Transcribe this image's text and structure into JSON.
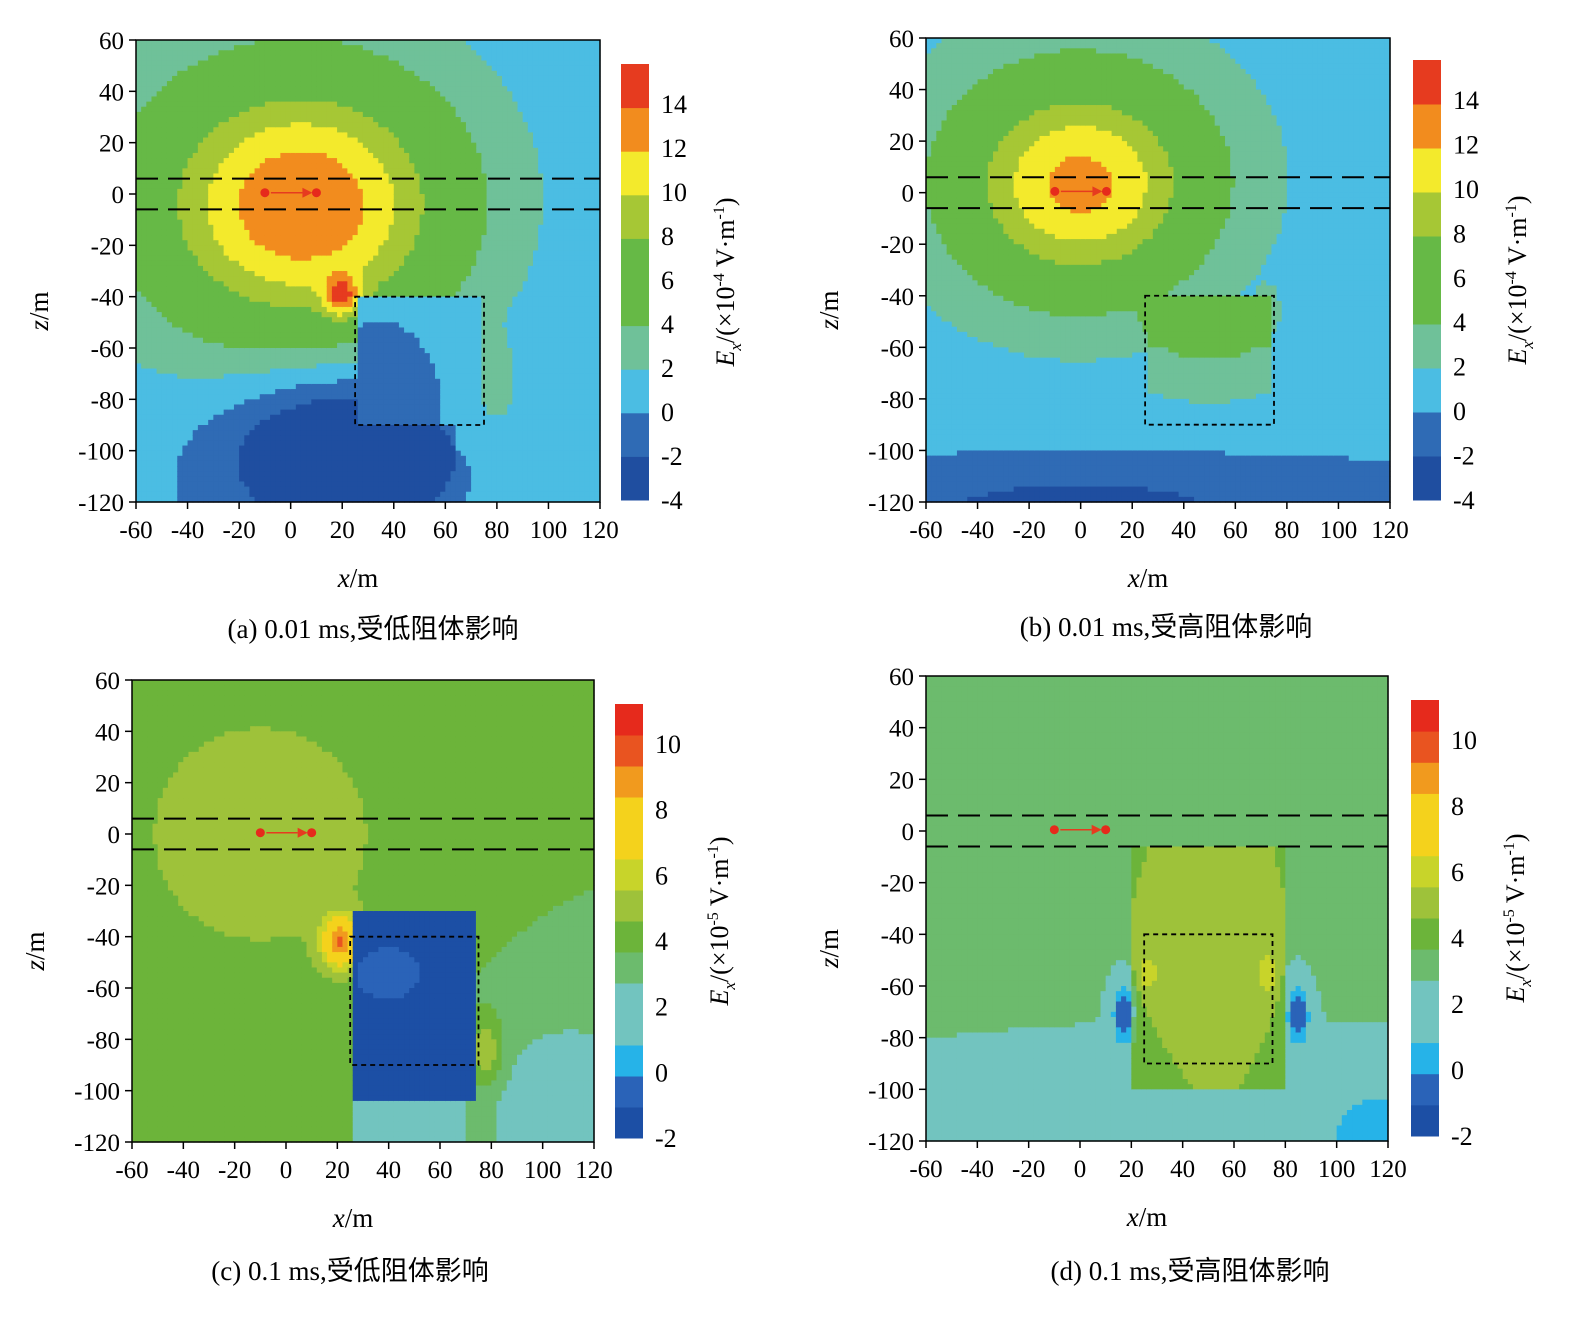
{
  "figure": {
    "colors": {
      "seq7": [
        "#1f4ea0",
        "#2f6bb5",
        "#4bbde3",
        "#6fc199",
        "#66b946",
        "#a6c735",
        "#f3ea2c",
        "#f28c1e",
        "#e63b1f"
      ],
      "seq8": [
        "#1c4fa5",
        "#2a63b8",
        "#26b3e8",
        "#72c4bf",
        "#6cbb6d",
        "#6cb43a",
        "#9ec23a",
        "#c8d42a",
        "#f4d21c",
        "#f19a1e",
        "#e95420",
        "#e62a1c"
      ]
    }
  },
  "chart_data": [
    {
      "type": "heatmap",
      "panel": "a",
      "caption": "(a) 0.01 ms,受低阻体影响",
      "xlabel_var": "x",
      "xlabel_unit": "/m",
      "ylabel_var": "z",
      "ylabel_unit": "/m",
      "xlim": [
        -60,
        120
      ],
      "ylim": [
        -120,
        60
      ],
      "xticks": [
        "-60",
        "-40",
        "-20",
        "0",
        "20",
        "40",
        "60",
        "80",
        "100",
        "120"
      ],
      "yticks": [
        "60",
        "40",
        "20",
        "0",
        "-20",
        "-40",
        "-60",
        "-80",
        "-100",
        "-120"
      ],
      "colorbar": {
        "title_var": "E",
        "title_sub": "x",
        "title_unit": "/(×10",
        "title_exp": "-4",
        "title_tail": " V·m",
        "title_exp2": "-1",
        "title_close": ")",
        "levels": [
          -4,
          -2,
          0,
          2,
          4,
          6,
          8,
          10,
          12,
          14,
          16
        ],
        "labels": [
          "14",
          "12",
          "10",
          "8",
          "6",
          "4",
          "2",
          "0",
          "-2",
          "-4"
        ]
      },
      "layer_z": [
        6,
        -6
      ],
      "anomaly_box": {
        "x": [
          25,
          75
        ],
        "z": [
          -40,
          -90
        ]
      },
      "source_points": [
        [
          -10,
          0.5
        ],
        [
          10,
          0.5
        ]
      ],
      "field_model": "low",
      "time_ms": 0.01
    },
    {
      "type": "heatmap",
      "panel": "b",
      "caption": "(b) 0.01 ms,受高阻体影响",
      "xlabel_var": "x",
      "xlabel_unit": "/m",
      "ylabel_var": "z",
      "ylabel_unit": "/m",
      "xlim": [
        -60,
        120
      ],
      "ylim": [
        -120,
        60
      ],
      "xticks": [
        "-60",
        "-40",
        "-20",
        "0",
        "20",
        "40",
        "60",
        "80",
        "100",
        "120"
      ],
      "yticks": [
        "60",
        "40",
        "20",
        "0",
        "-20",
        "-40",
        "-60",
        "-80",
        "-100",
        "-120"
      ],
      "colorbar": {
        "title_var": "E",
        "title_sub": "x",
        "title_unit": "/(×10",
        "title_exp": "-4",
        "title_tail": " V·m",
        "title_exp2": "-1",
        "title_close": ")",
        "levels": [
          -4,
          -2,
          0,
          2,
          4,
          6,
          8,
          10,
          12,
          14,
          16
        ],
        "labels": [
          "14",
          "12",
          "10",
          "8",
          "6",
          "4",
          "2",
          "0",
          "-2",
          "-4"
        ]
      },
      "layer_z": [
        6,
        -6
      ],
      "anomaly_box": {
        "x": [
          25,
          75
        ],
        "z": [
          -40,
          -90
        ]
      },
      "source_points": [
        [
          -10,
          0.5
        ],
        [
          10,
          0.5
        ]
      ],
      "field_model": "high",
      "time_ms": 0.01
    },
    {
      "type": "heatmap",
      "panel": "c",
      "caption": "(c) 0.1 ms,受低阻体影响",
      "xlabel_var": "x",
      "xlabel_unit": "/m",
      "ylabel_var": "z",
      "ylabel_unit": "/m",
      "xlim": [
        -60,
        120
      ],
      "ylim": [
        -120,
        60
      ],
      "xticks": [
        "-60",
        "-40",
        "-20",
        "0",
        "20",
        "40",
        "60",
        "80",
        "100",
        "120"
      ],
      "yticks": [
        "60",
        "40",
        "20",
        "0",
        "-20",
        "-40",
        "-60",
        "-80",
        "-100",
        "-120"
      ],
      "colorbar": {
        "title_var": "E",
        "title_sub": "x",
        "title_unit": "/(×10",
        "title_exp": "-5",
        "title_tail": " V·m",
        "title_exp2": "-1",
        "title_close": ")",
        "levels": [
          -2,
          -1,
          0,
          1,
          2,
          3,
          4,
          5,
          6,
          7,
          8,
          9,
          10,
          11,
          12
        ],
        "labels": [
          "10",
          "8",
          "6",
          "4",
          "2",
          "0",
          "-2"
        ]
      },
      "layer_z": [
        6,
        -6
      ],
      "anomaly_box": {
        "x": [
          25,
          75
        ],
        "z": [
          -40,
          -90
        ]
      },
      "source_points": [
        [
          -10,
          0.5
        ],
        [
          10,
          0.5
        ]
      ],
      "field_model": "low",
      "time_ms": 0.1
    },
    {
      "type": "heatmap",
      "panel": "d",
      "caption": "(d) 0.1 ms,受高阻体影响",
      "xlabel_var": "x",
      "xlabel_unit": "/m",
      "ylabel_var": "z",
      "ylabel_unit": "/m",
      "xlim": [
        -60,
        120
      ],
      "ylim": [
        -120,
        60
      ],
      "xticks": [
        "-60",
        "-40",
        "-20",
        "0",
        "20",
        "40",
        "60",
        "80",
        "100",
        "120"
      ],
      "yticks": [
        "60",
        "40",
        "20",
        "0",
        "-20",
        "-40",
        "-60",
        "-80",
        "-100",
        "-120"
      ],
      "colorbar": {
        "title_var": "E",
        "title_sub": "x",
        "title_unit": "/(×10",
        "title_exp": "-5",
        "title_tail": " V·m",
        "title_exp2": "-1",
        "title_close": ")",
        "levels": [
          -2,
          -1,
          0,
          1,
          2,
          3,
          4,
          5,
          6,
          7,
          8,
          9,
          10,
          11,
          12
        ],
        "labels": [
          "10",
          "8",
          "6",
          "4",
          "2",
          "0",
          "-2"
        ]
      },
      "layer_z": [
        6,
        -6
      ],
      "anomaly_box": {
        "x": [
          25,
          75
        ],
        "z": [
          -40,
          -90
        ]
      },
      "source_points": [
        [
          -10,
          0.5
        ],
        [
          10,
          0.5
        ]
      ],
      "field_model": "high",
      "time_ms": 0.1
    }
  ]
}
